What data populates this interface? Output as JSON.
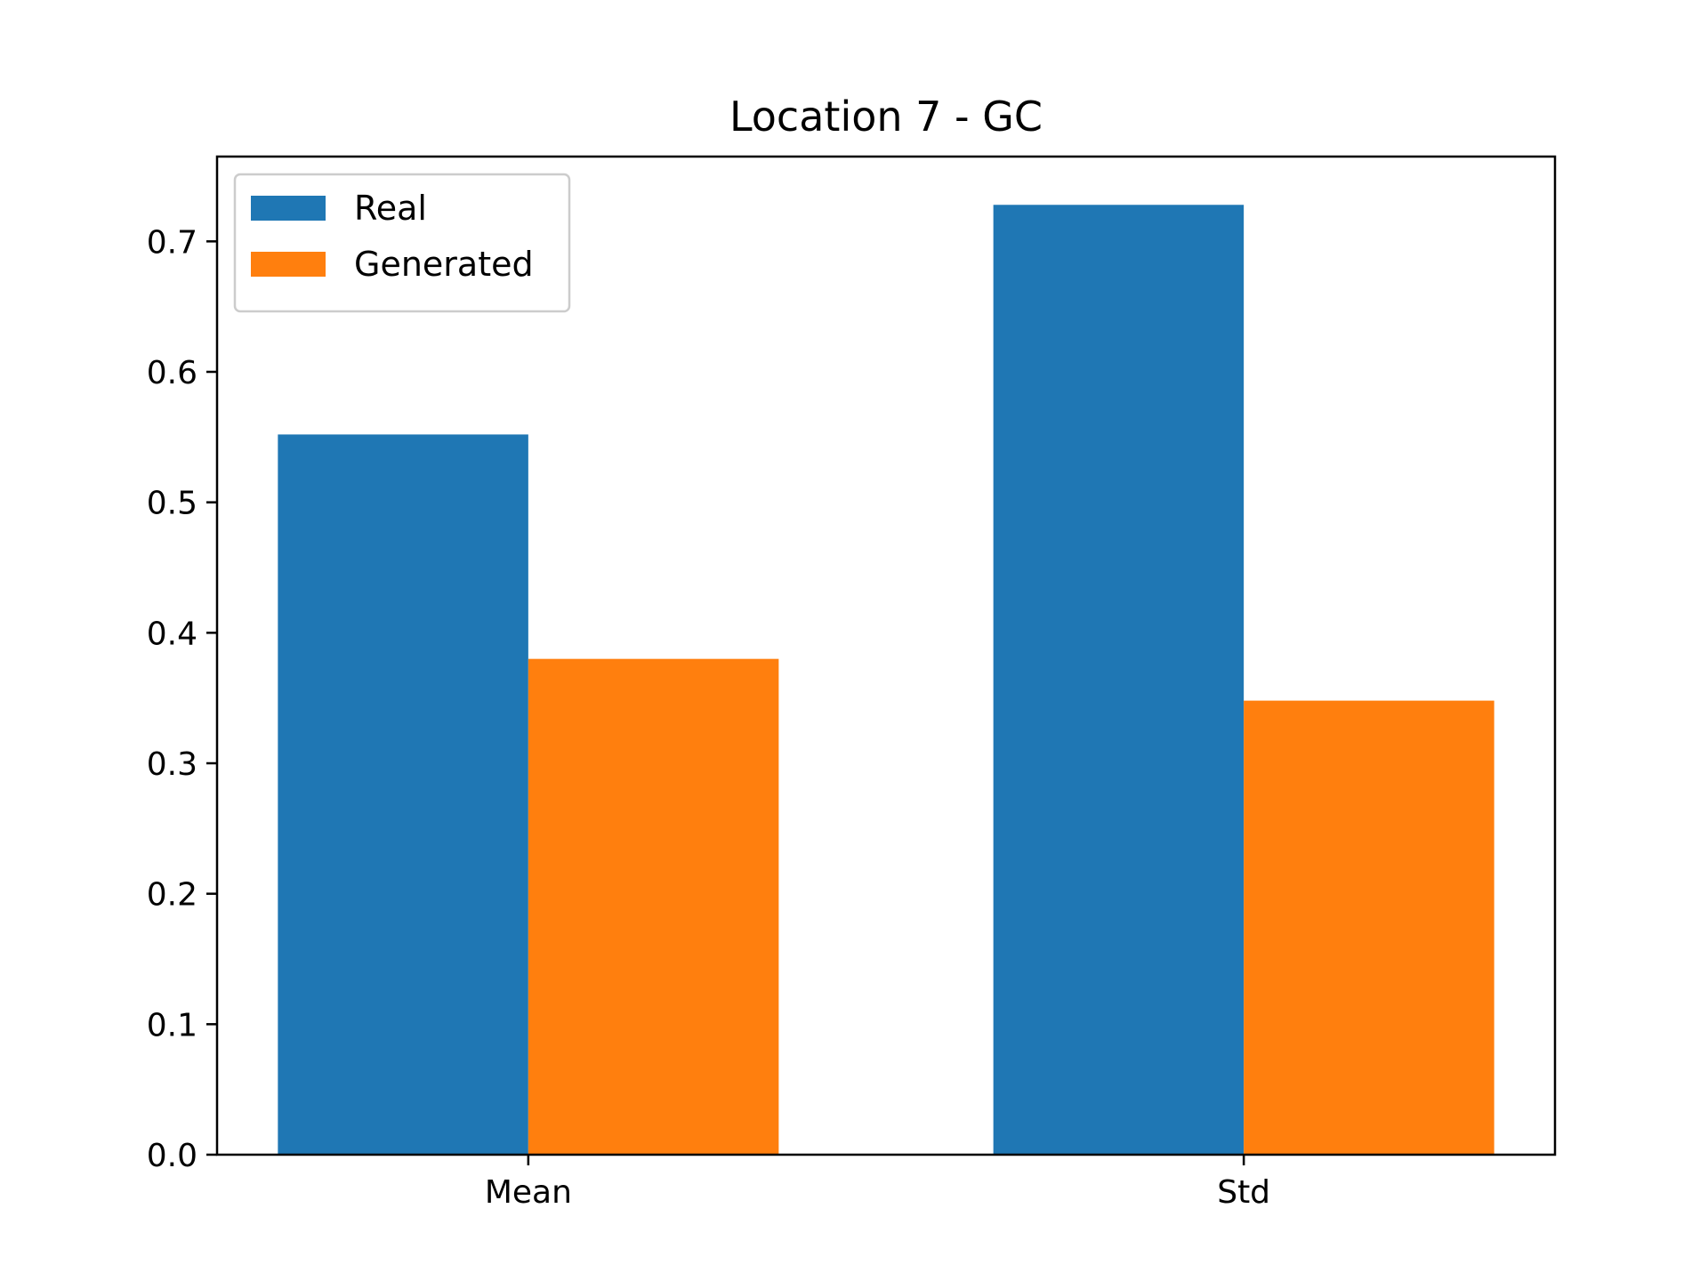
{
  "chart_data": {
    "type": "bar",
    "title": "Location 7 - GC",
    "xlabel": "",
    "ylabel": "",
    "categories": [
      "Mean",
      "Std"
    ],
    "series": [
      {
        "name": "Real",
        "values": [
          0.552,
          0.728
        ],
        "color": "#1f77b4"
      },
      {
        "name": "Generated",
        "values": [
          0.38,
          0.348
        ],
        "color": "#ff7f0e"
      }
    ],
    "ylim": [
      0,
      0.765
    ],
    "yticks": [
      0.0,
      0.1,
      0.2,
      0.3,
      0.4,
      0.5,
      0.6,
      0.7
    ],
    "ytick_labels": [
      "0.0",
      "0.1",
      "0.2",
      "0.3",
      "0.4",
      "0.5",
      "0.6",
      "0.7"
    ],
    "grid": false,
    "legend_position": "top-left"
  }
}
